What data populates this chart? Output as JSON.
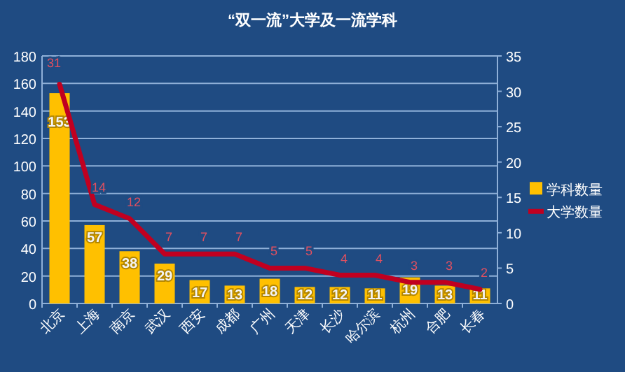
{
  "chart_data": {
    "type": "bar",
    "title": "“双一流”大学及一流学科",
    "categories": [
      "北京",
      "上海",
      "南京",
      "武汉",
      "西安",
      "成都",
      "广州",
      "天津",
      "长沙",
      "哈尔滨",
      "杭州",
      "合肥",
      "长春"
    ],
    "series": [
      {
        "name": "学科数量",
        "color": "#ffc000",
        "values": [
          153,
          57,
          38,
          29,
          17,
          13,
          18,
          12,
          12,
          11,
          19,
          13,
          11
        ]
      },
      {
        "name": "大学数量",
        "type": "line",
        "axis": "y2",
        "color": "#c00020",
        "values": [
          31,
          14,
          12,
          7,
          7,
          7,
          5,
          5,
          4,
          4,
          3,
          3,
          2
        ]
      }
    ],
    "ylim": [
      0,
      180
    ],
    "yticks": [
      0,
      20,
      40,
      60,
      80,
      100,
      120,
      140,
      160,
      180
    ],
    "y2lim": [
      0,
      35
    ],
    "y2ticks": [
      0,
      5,
      10,
      15,
      20,
      25,
      30,
      35
    ],
    "grid": "y",
    "legend": "right",
    "data_labels": true,
    "marker": "none"
  }
}
